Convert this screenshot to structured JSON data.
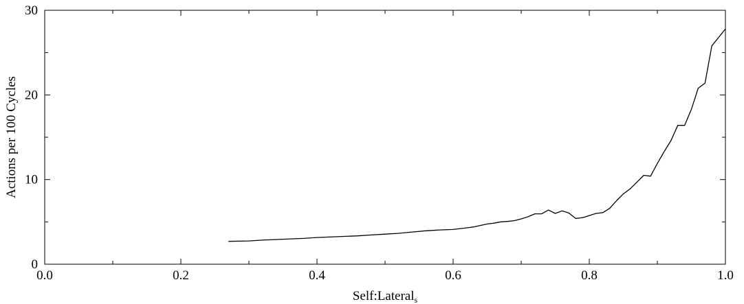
{
  "chart_data": {
    "type": "line",
    "title": "",
    "xlabel": "Self:Lateral",
    "xlabel_subscript": "s",
    "ylabel": "Actions per 100 Cycles",
    "xlim": [
      0.0,
      1.0
    ],
    "ylim": [
      0,
      30
    ],
    "x_ticks": [
      "0.0",
      "0.2",
      "0.4",
      "0.6",
      "0.8",
      "1.0"
    ],
    "y_ticks": [
      "0",
      "10",
      "20",
      "30"
    ],
    "grid": false,
    "legend": "none",
    "series": [
      {
        "color": "#000000",
        "x": [
          0.27,
          0.3,
          0.32,
          0.35,
          0.38,
          0.4,
          0.43,
          0.46,
          0.48,
          0.5,
          0.52,
          0.54,
          0.56,
          0.58,
          0.6,
          0.62,
          0.63,
          0.65,
          0.66,
          0.67,
          0.68,
          0.69,
          0.7,
          0.71,
          0.72,
          0.73,
          0.74,
          0.75,
          0.76,
          0.77,
          0.78,
          0.79,
          0.8,
          0.81,
          0.82,
          0.83,
          0.84,
          0.85,
          0.86,
          0.87,
          0.88,
          0.89,
          0.9,
          0.91,
          0.92,
          0.93,
          0.94,
          0.95,
          0.96,
          0.97,
          0.98,
          0.99,
          1.0
        ],
        "y": [
          2.7,
          2.75,
          2.85,
          2.95,
          3.05,
          3.15,
          3.25,
          3.35,
          3.45,
          3.55,
          3.65,
          3.8,
          3.95,
          4.05,
          4.1,
          4.3,
          4.4,
          4.75,
          4.85,
          5.0,
          5.05,
          5.15,
          5.35,
          5.6,
          5.95,
          5.95,
          6.4,
          6.0,
          6.3,
          6.05,
          5.4,
          5.5,
          5.75,
          6.0,
          6.1,
          6.6,
          7.5,
          8.3,
          8.9,
          9.7,
          10.5,
          10.4,
          11.9,
          13.3,
          14.6,
          16.4,
          16.4,
          18.3,
          20.8,
          21.4,
          25.8,
          26.8,
          27.8
        ]
      }
    ]
  }
}
